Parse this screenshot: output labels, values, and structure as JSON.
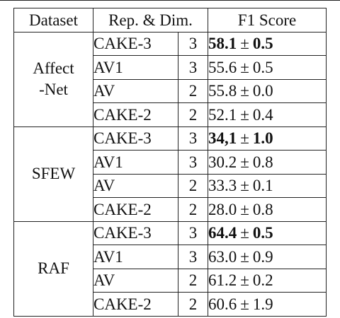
{
  "table": {
    "headers": {
      "dataset": "Dataset",
      "rep_dim": "Rep. & Dim.",
      "f1": "F1 Score"
    },
    "pm_symbol": "±",
    "groups": [
      {
        "dataset": "Affect\n-Net",
        "rows": [
          {
            "rep": "CAKE-3",
            "dim": "3",
            "mean": "58.1",
            "std": "0.5",
            "best": true
          },
          {
            "rep": "AV1",
            "dim": "3",
            "mean": "55.6",
            "std": "0.5",
            "best": false
          },
          {
            "rep": "AV",
            "dim": "2",
            "mean": "55.8",
            "std": "0.0",
            "best": false
          },
          {
            "rep": "CAKE-2",
            "dim": "2",
            "mean": "52.1",
            "std": "0.4",
            "best": false
          }
        ]
      },
      {
        "dataset": "SFEW",
        "rows": [
          {
            "rep": "CAKE-3",
            "dim": "3",
            "mean": "34,1",
            "std": "1.0",
            "best": true
          },
          {
            "rep": "AV1",
            "dim": "3",
            "mean": "30.2",
            "std": "0.8",
            "best": false
          },
          {
            "rep": "AV",
            "dim": "2",
            "mean": "33.3",
            "std": "0.1",
            "best": false
          },
          {
            "rep": "CAKE-2",
            "dim": "2",
            "mean": "28.0",
            "std": "0.8",
            "best": false
          }
        ]
      },
      {
        "dataset": "RAF",
        "rows": [
          {
            "rep": "CAKE-3",
            "dim": "3",
            "mean": "64.4",
            "std": "0.5",
            "best": true
          },
          {
            "rep": "AV1",
            "dim": "3",
            "mean": "63.0",
            "std": "0.9",
            "best": false
          },
          {
            "rep": "AV",
            "dim": "2",
            "mean": "61.2",
            "std": "0.2",
            "best": false
          },
          {
            "rep": "CAKE-2",
            "dim": "2",
            "mean": "60.6",
            "std": "1.9",
            "best": false
          }
        ]
      }
    ]
  }
}
